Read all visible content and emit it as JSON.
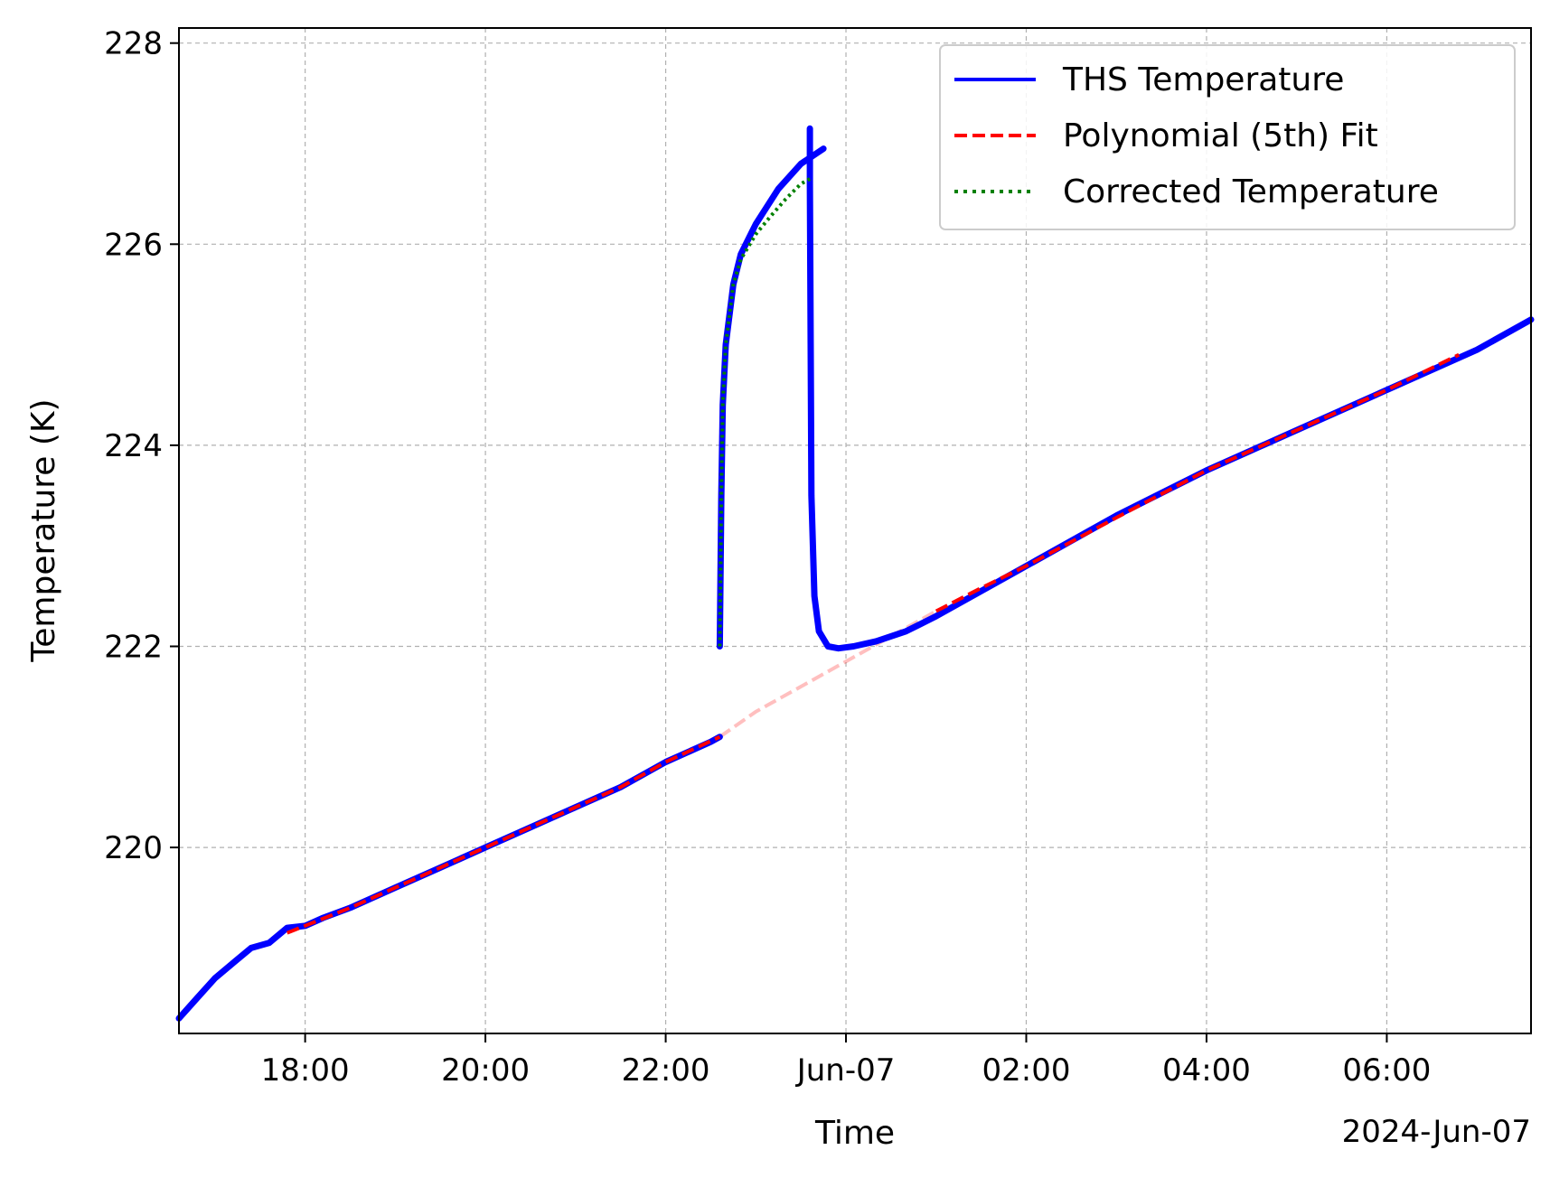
{
  "chart_data": {
    "type": "line",
    "title": "",
    "xlabel": "Time",
    "ylabel": "Temperature (K)",
    "x_offset_label": "2024-Jun-07",
    "x_ticks": [
      {
        "label": "18:00",
        "t": "2024-06-06 18:00"
      },
      {
        "label": "20:00",
        "t": "2024-06-06 20:00"
      },
      {
        "label": "22:00",
        "t": "2024-06-06 22:00"
      },
      {
        "label": "Jun-07",
        "t": "2024-06-07 00:00"
      },
      {
        "label": "02:00",
        "t": "2024-06-07 02:00"
      },
      {
        "label": "04:00",
        "t": "2024-06-07 04:00"
      },
      {
        "label": "06:00",
        "t": "2024-06-07 06:00"
      }
    ],
    "y_ticks": [
      {
        "label": "220",
        "v": 220
      },
      {
        "label": "222",
        "v": 222
      },
      {
        "label": "224",
        "v": 224
      },
      {
        "label": "226",
        "v": 226
      },
      {
        "label": "228",
        "v": 228
      }
    ],
    "xlim": [
      "2024-06-06 16:36",
      "2024-06-07 07:36"
    ],
    "ylim": [
      218.15,
      228.15
    ],
    "grid": true,
    "legend_position": "top-right",
    "series": [
      {
        "name": "THS Temperature",
        "color": "#0000ff",
        "style": "solid",
        "points": [
          [
            "2024-06-06 16:36",
            218.3
          ],
          [
            "2024-06-06 16:48",
            218.5
          ],
          [
            "2024-06-06 17:00",
            218.7
          ],
          [
            "2024-06-06 17:12",
            218.85
          ],
          [
            "2024-06-06 17:24",
            219.0
          ],
          [
            "2024-06-06 17:36",
            219.05
          ],
          [
            "2024-06-06 17:48",
            219.2
          ],
          [
            "2024-06-06 18:00",
            219.22
          ],
          [
            "2024-06-06 18:12",
            219.3
          ],
          [
            "2024-06-06 18:30",
            219.4
          ],
          [
            "2024-06-06 19:00",
            219.6
          ],
          [
            "2024-06-06 19:30",
            219.8
          ],
          [
            "2024-06-06 20:00",
            220.0
          ],
          [
            "2024-06-06 20:30",
            220.2
          ],
          [
            "2024-06-06 21:00",
            220.4
          ],
          [
            "2024-06-06 21:30",
            220.6
          ],
          [
            "2024-06-06 22:00",
            220.85
          ],
          [
            "2024-06-06 22:30",
            221.05
          ],
          [
            "2024-06-06 22:36",
            221.1
          ],
          [
            "2024-06-06 22:36",
            222.0
          ],
          [
            "2024-06-06 22:37",
            223.5
          ],
          [
            "2024-06-06 22:38",
            224.4
          ],
          [
            "2024-06-06 22:40",
            225.0
          ],
          [
            "2024-06-06 22:45",
            225.6
          ],
          [
            "2024-06-06 22:50",
            225.9
          ],
          [
            "2024-06-06 23:00",
            226.2
          ],
          [
            "2024-06-06 23:15",
            226.55
          ],
          [
            "2024-06-06 23:30",
            226.8
          ],
          [
            "2024-06-06 23:45",
            226.95
          ],
          [
            "2024-06-06 23:36",
            227.15
          ],
          [
            "2024-06-06 23:36",
            226.6
          ],
          [
            "2024-06-06 23:37",
            223.5
          ],
          [
            "2024-06-06 23:39",
            222.5
          ],
          [
            "2024-06-06 23:42",
            222.15
          ],
          [
            "2024-06-06 23:48",
            222.0
          ],
          [
            "2024-06-06 23:55",
            221.98
          ],
          [
            "2024-06-07 00:05",
            222.0
          ],
          [
            "2024-06-07 00:20",
            222.05
          ],
          [
            "2024-06-07 00:40",
            222.15
          ],
          [
            "2024-06-07 01:00",
            222.3
          ],
          [
            "2024-06-07 01:30",
            222.55
          ],
          [
            "2024-06-07 02:00",
            222.8
          ],
          [
            "2024-06-07 03:00",
            223.3
          ],
          [
            "2024-06-07 04:00",
            223.75
          ],
          [
            "2024-06-07 05:00",
            224.15
          ],
          [
            "2024-06-07 06:00",
            224.55
          ],
          [
            "2024-06-07 07:00",
            224.95
          ],
          [
            "2024-06-07 07:36",
            225.25
          ]
        ]
      },
      {
        "name": "Polynomial (5th) Fit",
        "color": "#ff0000",
        "style": "dashed",
        "points": [
          [
            "2024-06-06 17:48",
            219.15
          ],
          [
            "2024-06-06 18:30",
            219.4
          ],
          [
            "2024-06-06 19:00",
            219.6
          ],
          [
            "2024-06-06 19:30",
            219.8
          ],
          [
            "2024-06-06 20:00",
            220.0
          ],
          [
            "2024-06-06 20:30",
            220.2
          ],
          [
            "2024-06-06 21:00",
            220.4
          ],
          [
            "2024-06-06 21:30",
            220.6
          ],
          [
            "2024-06-06 22:00",
            220.85
          ],
          [
            "2024-06-06 22:36",
            221.1
          ],
          [
            "2024-06-06 23:00",
            221.35
          ],
          [
            "2024-06-06 23:30",
            221.6
          ],
          [
            "2024-06-07 00:00",
            221.85
          ],
          [
            "2024-06-07 00:30",
            222.1
          ],
          [
            "2024-06-07 01:00",
            222.35
          ],
          [
            "2024-06-07 01:30",
            222.58
          ],
          [
            "2024-06-07 02:00",
            222.8
          ],
          [
            "2024-06-07 03:00",
            223.28
          ],
          [
            "2024-06-07 04:00",
            223.75
          ],
          [
            "2024-06-07 05:00",
            224.15
          ],
          [
            "2024-06-07 06:00",
            224.55
          ],
          [
            "2024-06-07 06:48",
            224.9
          ]
        ],
        "faded_range": [
          "2024-06-06 22:36",
          "2024-06-07 01:00"
        ]
      },
      {
        "name": "Corrected Temperature",
        "color": "#008000",
        "style": "dotted",
        "points": [
          [
            "2024-06-06 22:36",
            222.0
          ],
          [
            "2024-06-06 22:37",
            223.5
          ],
          [
            "2024-06-06 22:38",
            224.4
          ],
          [
            "2024-06-06 22:40",
            225.0
          ],
          [
            "2024-06-06 22:45",
            225.6
          ],
          [
            "2024-06-06 22:50",
            225.85
          ],
          [
            "2024-06-06 23:00",
            226.1
          ],
          [
            "2024-06-06 23:10",
            226.28
          ],
          [
            "2024-06-06 23:20",
            226.45
          ],
          [
            "2024-06-06 23:30",
            226.6
          ],
          [
            "2024-06-06 23:36",
            226.65
          ]
        ]
      }
    ]
  }
}
